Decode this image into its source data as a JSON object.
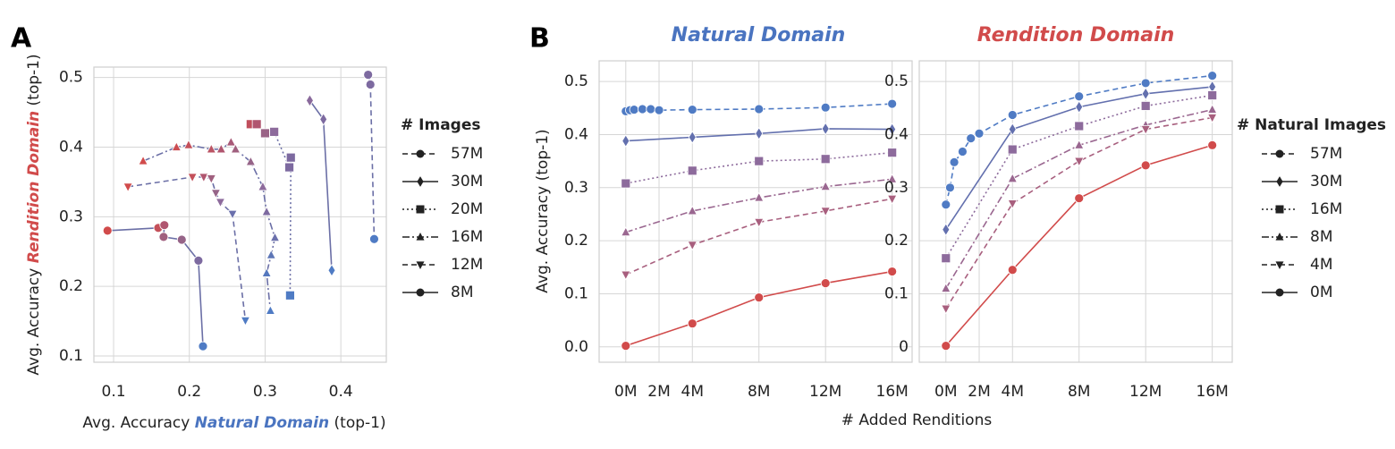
{
  "panel_labels": [
    "A",
    "B"
  ],
  "chart_data": [
    {
      "type": "line",
      "x_label_parts": [
        "Avg. Accuracy ",
        "Natural Domain",
        " (top-1)"
      ],
      "y_label_parts": [
        "Avg. Accuracy ",
        "Rendition Domain",
        " (top-1)"
      ],
      "xlim": [
        0.074,
        0.46
      ],
      "ylim": [
        0.091,
        0.515
      ],
      "xticks": [
        0.1,
        0.2,
        0.3,
        0.4
      ],
      "yticks": [
        0.1,
        0.2,
        0.3,
        0.4,
        0.5
      ],
      "grid": true,
      "legend_title": "# Images",
      "legend": "right",
      "series": [
        {
          "name": "57M",
          "color": "#6b6fa6",
          "dash": "dashed",
          "marker": "circle",
          "x": [
            0.436,
            0.439,
            0.444
          ],
          "values": [
            0.504,
            0.49,
            0.268
          ],
          "point_colors": [
            "#7d6aa0",
            "#7d6aa0",
            "#4f7bc4"
          ]
        },
        {
          "name": "30M",
          "color": "#6b6fa6",
          "dash": "solid",
          "marker": "diamond",
          "x": [
            0.359,
            0.377,
            0.388
          ],
          "values": [
            0.467,
            0.44,
            0.223
          ],
          "point_colors": [
            "#8a6a9c",
            "#7d6aa0",
            "#4f7bc4"
          ]
        },
        {
          "name": "20M",
          "color": "#6b6fa6",
          "dash": "dotted",
          "marker": "square",
          "x": [
            0.281,
            0.289,
            0.3,
            0.312,
            0.332,
            0.334,
            0.333
          ],
          "values": [
            0.433,
            0.433,
            0.42,
            0.422,
            0.371,
            0.385,
            0.187
          ],
          "point_colors": [
            "#c04e5c",
            "#b0556f",
            "#9a6386",
            "#8d6b9c",
            "#7d6aa0",
            "#7d6aa0",
            "#4f7bc4"
          ]
        },
        {
          "name": "16M",
          "color": "#6b6fa6",
          "dash": "dashdot",
          "marker": "triangle",
          "x": [
            0.139,
            0.183,
            0.199,
            0.229,
            0.242,
            0.255,
            0.261,
            0.281,
            0.297,
            0.302,
            0.313,
            0.308,
            0.302,
            0.307
          ],
          "values": [
            0.38,
            0.4,
            0.403,
            0.397,
            0.397,
            0.407,
            0.397,
            0.379,
            0.343,
            0.307,
            0.27,
            0.245,
            0.219,
            0.165
          ],
          "point_colors": [
            "#d14b4b",
            "#cc4d52",
            "#c4505a",
            "#bb5464",
            "#b0556f",
            "#a85a78",
            "#a0607f",
            "#966488",
            "#8d6b9c",
            "#7d6aa0",
            "#6b70ac",
            "#5d76b6",
            "#5578be",
            "#4f7bc4"
          ]
        },
        {
          "name": "12M",
          "color": "#6b6fa6",
          "dash": "dashed",
          "marker": "triangle-down",
          "x": [
            0.119,
            0.204,
            0.219,
            0.229,
            0.235,
            0.241,
            0.257,
            0.274
          ],
          "values": [
            0.343,
            0.357,
            0.357,
            0.355,
            0.334,
            0.321,
            0.304,
            0.151
          ],
          "point_colors": [
            "#d14b4b",
            "#c4505a",
            "#b0556f",
            "#a0607f",
            "#966488",
            "#8d6b9c",
            "#6b70ac",
            "#4f7bc4"
          ]
        },
        {
          "name": "8M",
          "color": "#6b6fa6",
          "dash": "solid",
          "marker": "circle",
          "x": [
            0.092,
            0.159,
            0.167,
            0.166,
            0.19,
            0.212,
            0.218
          ],
          "values": [
            0.28,
            0.284,
            0.288,
            0.271,
            0.267,
            0.237,
            0.114
          ],
          "point_colors": [
            "#d14b4b",
            "#c4505a",
            "#b0556f",
            "#a0607f",
            "#966488",
            "#7d6aa0",
            "#4f7bc4"
          ]
        }
      ]
    },
    {
      "type": "line",
      "title": "Natural Domain",
      "y_label": "Avg. Accuracy (top-1)",
      "x_label": "# Added Renditions",
      "xlim": [
        -1.6,
        17.2
      ],
      "ylim": [
        -0.029,
        0.539
      ],
      "grid": true,
      "xticks": [
        {
          "value": 0,
          "label": "0M"
        },
        {
          "value": 2,
          "label": "2M"
        },
        {
          "value": 4,
          "label": "4M"
        },
        {
          "value": 8,
          "label": "8M"
        },
        {
          "value": 12,
          "label": "12M"
        },
        {
          "value": 16,
          "label": "16M"
        }
      ],
      "yticks": [
        {
          "value": 0,
          "label": "0.0"
        },
        0.1,
        0.2,
        0.3,
        0.4,
        0.5
      ],
      "series": [
        {
          "name": "57M",
          "color": "#4f7bc4",
          "dash": "dashed",
          "marker": "circle",
          "x": [
            0,
            0.25,
            0.5,
            1,
            1.5,
            2,
            4,
            8,
            12,
            16
          ],
          "values": [
            0.444,
            0.446,
            0.447,
            0.448,
            0.448,
            0.446,
            0.447,
            0.448,
            0.451,
            0.458
          ]
        },
        {
          "name": "30M",
          "color": "#6370ae",
          "dash": "solid",
          "marker": "diamond",
          "x": [
            0,
            4,
            8,
            12,
            16
          ],
          "values": [
            0.388,
            0.395,
            0.402,
            0.411,
            0.41
          ]
        },
        {
          "name": "16M",
          "color": "#8d6b9c",
          "dash": "dotted",
          "marker": "square",
          "x": [
            0,
            4,
            8,
            12,
            16
          ],
          "values": [
            0.308,
            0.332,
            0.35,
            0.354,
            0.366
          ]
        },
        {
          "name": "8M",
          "color": "#9a6790",
          "dash": "dashdot",
          "marker": "triangle",
          "x": [
            0,
            4,
            8,
            12,
            16
          ],
          "values": [
            0.216,
            0.256,
            0.281,
            0.302,
            0.316
          ]
        },
        {
          "name": "4M",
          "color": "#a85f7e",
          "dash": "dashed",
          "marker": "triangle-down",
          "x": [
            0,
            4,
            8,
            12,
            16
          ],
          "values": [
            0.136,
            0.192,
            0.235,
            0.256,
            0.279
          ]
        },
        {
          "name": "0M",
          "color": "#d14b4b",
          "dash": "solid",
          "marker": "circle",
          "x": [
            0,
            4,
            8,
            12,
            16
          ],
          "values": [
            0.002,
            0.044,
            0.093,
            0.12,
            0.142
          ]
        }
      ]
    },
    {
      "type": "line",
      "title": "Rendition Domain",
      "legend_title": "# Natural Images",
      "legend": "right",
      "xlim": [
        -1.6,
        17.2
      ],
      "ylim": [
        -0.029,
        0.539
      ],
      "grid": true,
      "xticks": [
        {
          "value": 0,
          "label": "0M"
        },
        {
          "value": 2,
          "label": "2M"
        },
        {
          "value": 4,
          "label": "4M"
        },
        {
          "value": 8,
          "label": "8M"
        },
        {
          "value": 12,
          "label": "12M"
        },
        {
          "value": 16,
          "label": "16M"
        }
      ],
      "yticks": [
        0,
        0.1,
        0.2,
        0.3,
        0.4,
        0.5
      ],
      "series": [
        {
          "name": "57M",
          "color": "#4f7bc4",
          "dash": "dashed",
          "marker": "circle",
          "x": [
            0,
            0.25,
            0.5,
            1,
            1.5,
            2,
            4,
            8,
            12,
            16
          ],
          "values": [
            0.268,
            0.3,
            0.348,
            0.368,
            0.393,
            0.402,
            0.437,
            0.472,
            0.497,
            0.511
          ]
        },
        {
          "name": "30M",
          "color": "#6370ae",
          "dash": "solid",
          "marker": "diamond",
          "x": [
            0,
            4,
            8,
            12,
            16
          ],
          "values": [
            0.221,
            0.41,
            0.452,
            0.477,
            0.49
          ]
        },
        {
          "name": "16M",
          "color": "#8d6b9c",
          "dash": "dotted",
          "marker": "square",
          "x": [
            0,
            4,
            8,
            12,
            16
          ],
          "values": [
            0.167,
            0.372,
            0.416,
            0.454,
            0.474
          ]
        },
        {
          "name": "8M",
          "color": "#9a6790",
          "dash": "dashdot",
          "marker": "triangle",
          "x": [
            0,
            4,
            8,
            12,
            16
          ],
          "values": [
            0.11,
            0.317,
            0.38,
            0.418,
            0.447
          ]
        },
        {
          "name": "4M",
          "color": "#a85f7e",
          "dash": "dashed",
          "marker": "triangle-down",
          "x": [
            0,
            4,
            8,
            12,
            16
          ],
          "values": [
            0.072,
            0.27,
            0.35,
            0.41,
            0.432
          ]
        },
        {
          "name": "0M",
          "color": "#d14b4b",
          "dash": "solid",
          "marker": "circle",
          "x": [
            0,
            4,
            8,
            12,
            16
          ],
          "values": [
            0.002,
            0.145,
            0.28,
            0.342,
            0.38
          ]
        }
      ]
    }
  ]
}
